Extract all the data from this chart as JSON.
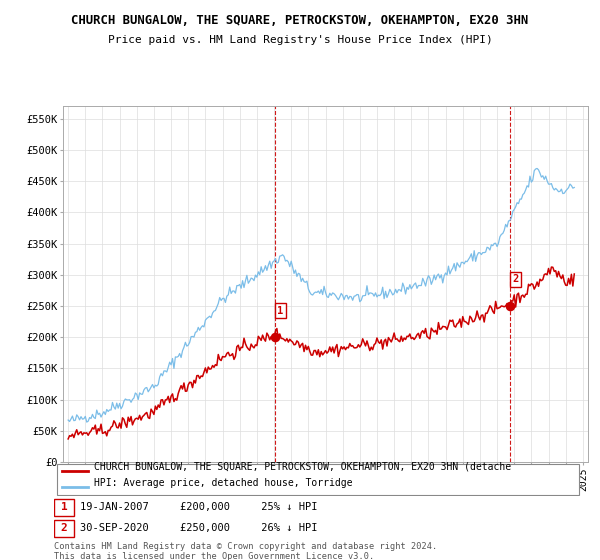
{
  "title": "CHURCH BUNGALOW, THE SQUARE, PETROCKSTOW, OKEHAMPTON, EX20 3HN",
  "subtitle": "Price paid vs. HM Land Registry's House Price Index (HPI)",
  "ylim": [
    0,
    570000
  ],
  "yticks": [
    0,
    50000,
    100000,
    150000,
    200000,
    250000,
    300000,
    350000,
    400000,
    450000,
    500000,
    550000
  ],
  "ytick_labels": [
    "£0",
    "£50K",
    "£100K",
    "£150K",
    "£200K",
    "£250K",
    "£300K",
    "£350K",
    "£400K",
    "£450K",
    "£500K",
    "£550K"
  ],
  "hpi_color": "#7bbde8",
  "price_color": "#cc0000",
  "sale1_date": 2007.05,
  "sale1_price": 200000,
  "sale2_date": 2020.75,
  "sale2_price": 250000,
  "legend_property": "CHURCH BUNGALOW, THE SQUARE, PETROCKSTOW, OKEHAMPTON, EX20 3HN (detache",
  "legend_hpi": "HPI: Average price, detached house, Torridge",
  "footnote": "Contains HM Land Registry data © Crown copyright and database right 2024.\nThis data is licensed under the Open Government Licence v3.0.",
  "grid_color": "#dddddd",
  "xmin": 1995,
  "xmax": 2025
}
